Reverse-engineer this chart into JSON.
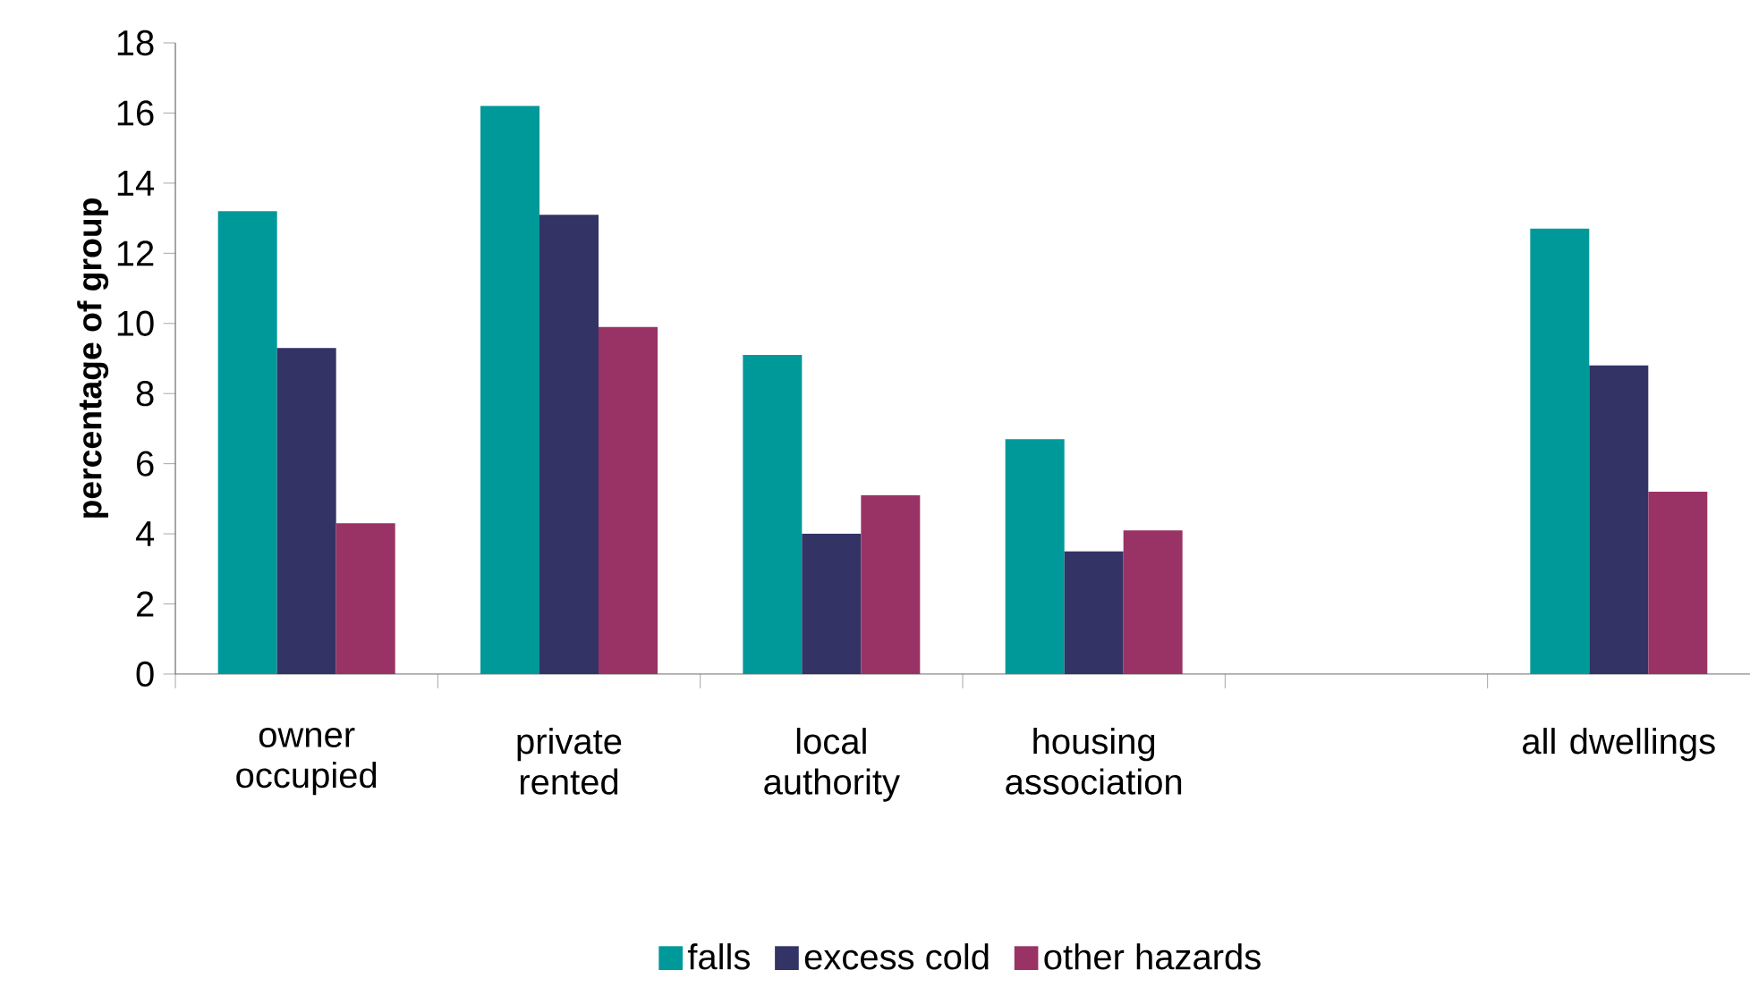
{
  "chart_data": {
    "type": "bar",
    "ylabel": "percentage of group",
    "categories": [
      "owner occupied",
      "private rented",
      "local authority",
      "housing association",
      null,
      "all dwellings"
    ],
    "series": [
      {
        "name": "falls",
        "color": "#009999",
        "values": [
          13.2,
          16.2,
          9.1,
          6.7,
          null,
          12.7
        ]
      },
      {
        "name": "excess cold",
        "color": "#333366",
        "values": [
          9.3,
          13.1,
          4.0,
          3.5,
          null,
          8.8
        ]
      },
      {
        "name": "other hazards",
        "color": "#993366",
        "values": [
          4.3,
          9.9,
          5.1,
          4.1,
          null,
          5.2
        ]
      }
    ],
    "ylim": [
      0,
      18
    ],
    "yticks": [
      0,
      2,
      4,
      6,
      8,
      10,
      12,
      14,
      16,
      18
    ],
    "legend": "bottom"
  }
}
